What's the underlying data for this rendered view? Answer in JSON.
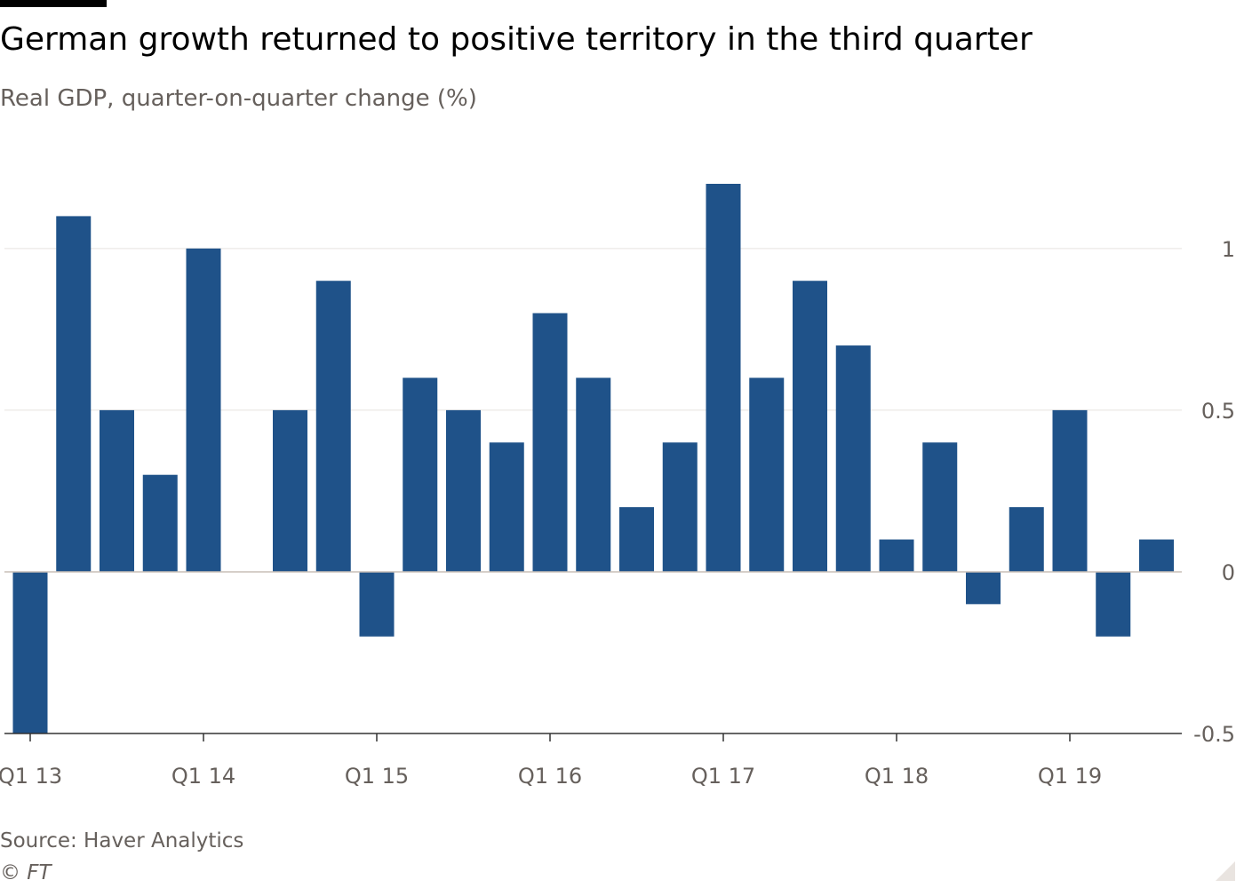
{
  "header": {
    "title": "German growth returned to positive territory in the third quarter",
    "subtitle": "Real GDP, quarter-on-quarter change (%)"
  },
  "footer": {
    "source": "Source: Haver Analytics",
    "copyright": "© FT"
  },
  "colors": {
    "bar": "#1f5289",
    "grid": "#e6e3df",
    "zero_line": "#c9bfb7",
    "axis_text": "#66605c"
  },
  "chart_data": {
    "type": "bar",
    "title": "German growth returned to positive territory in the third quarter",
    "subtitle": "Real GDP, quarter-on-quarter change (%)",
    "xlabel": "",
    "ylabel": "",
    "ylim": [
      -0.5,
      1.2
    ],
    "yticks": [
      -0.5,
      0,
      0.5,
      1
    ],
    "ytick_labels": [
      "-0.5",
      "0",
      "0.5",
      "1"
    ],
    "y_axis_side": "right",
    "grid": true,
    "categories": [
      "Q1 13",
      "Q2 13",
      "Q3 13",
      "Q4 13",
      "Q1 14",
      "Q2 14",
      "Q3 14",
      "Q4 14",
      "Q1 15",
      "Q2 15",
      "Q3 15",
      "Q4 15",
      "Q1 16",
      "Q2 16",
      "Q3 16",
      "Q4 16",
      "Q1 17",
      "Q2 17",
      "Q3 17",
      "Q4 17",
      "Q1 18",
      "Q2 18",
      "Q3 18",
      "Q4 18",
      "Q1 19",
      "Q2 19",
      "Q3 19"
    ],
    "values": [
      -0.5,
      1.1,
      0.5,
      0.3,
      1.0,
      0.0,
      0.5,
      0.9,
      -0.2,
      0.6,
      0.5,
      0.4,
      0.8,
      0.6,
      0.2,
      0.4,
      1.2,
      0.6,
      0.9,
      0.7,
      0.1,
      0.4,
      -0.1,
      0.2,
      0.5,
      -0.2,
      0.1
    ],
    "x_tick_labels": [
      "Q1 13",
      "Q1 14",
      "Q1 15",
      "Q1 16",
      "Q1 17",
      "Q1 18",
      "Q1 19"
    ]
  }
}
